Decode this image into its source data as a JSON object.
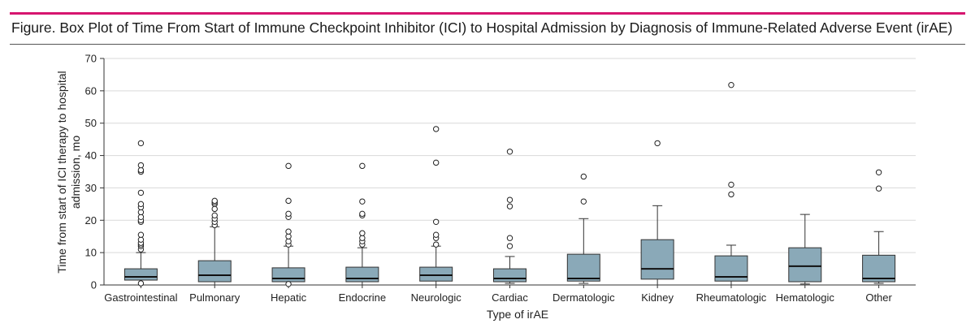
{
  "figure": {
    "title": "Figure. Box Plot of Time From Start of Immune Checkpoint Inhibitor (ICI) to Hospital Admission by Diagnosis of Immune-Related Adverse Event (irAE)"
  },
  "colors": {
    "accent_rule": "#d6156f",
    "box_fill": "#8aa9b8",
    "box_stroke": "#333333",
    "gridline": "#d9d9d9"
  },
  "chart_data": {
    "type": "box",
    "title": "Figure. Box Plot of Time From Start of Immune Checkpoint Inhibitor (ICI) to Hospital Admission by Diagnosis of Immune-Related Adverse Event (irAE)",
    "xlabel": "Type of irAE",
    "ylabel_lines": [
      "Time from start of ICI therapy to hospital",
      "admission, mo"
    ],
    "ylim": [
      0,
      70
    ],
    "yticks": [
      0,
      10,
      20,
      30,
      40,
      50,
      60,
      70
    ],
    "grid": true,
    "categories": [
      "Gastrointestinal",
      "Pulmonary",
      "Hepatic",
      "Endocrine",
      "Neurologic",
      "Cardiac",
      "Dermatologic",
      "Kidney",
      "Rheumatologic",
      "Hematologic",
      "Other"
    ],
    "boxes": [
      {
        "category": "Gastrointestinal",
        "whisker_low": 0,
        "q1": 1.5,
        "median": 2.5,
        "q3": 5,
        "whisker_high": 10,
        "outliers": [
          0.5,
          11,
          12,
          12.5,
          13,
          14,
          15.5,
          19.5,
          20,
          21,
          22.5,
          24,
          25,
          28.5,
          35,
          35.5,
          37,
          43.8
        ]
      },
      {
        "category": "Pulmonary",
        "whisker_low": 0,
        "q1": 1,
        "median": 3,
        "q3": 7.5,
        "whisker_high": 18,
        "outliers": [
          18.5,
          19.5,
          20.5,
          21.5,
          23.5,
          25,
          25.5,
          26
        ]
      },
      {
        "category": "Hepatic",
        "whisker_low": 0,
        "q1": 1,
        "median": 2,
        "q3": 5.3,
        "whisker_high": 12,
        "outliers": [
          0.3,
          12.5,
          13.5,
          15,
          16.5,
          21,
          22,
          26,
          36.8
        ]
      },
      {
        "category": "Endocrine",
        "whisker_low": 0,
        "q1": 1,
        "median": 2,
        "q3": 5.5,
        "whisker_high": 11.5,
        "outliers": [
          12.5,
          13.5,
          14.5,
          16,
          21.5,
          22,
          25.8,
          36.8
        ]
      },
      {
        "category": "Neurologic",
        "whisker_low": 0,
        "q1": 1.2,
        "median": 3,
        "q3": 5.5,
        "whisker_high": 12,
        "outliers": [
          12.5,
          14.5,
          15.5,
          19.5,
          37.8,
          48.2
        ]
      },
      {
        "category": "Cardiac",
        "whisker_low": 0.5,
        "q1": 1,
        "median": 2,
        "q3": 5,
        "whisker_high": 8.8,
        "outliers": [
          12,
          14.5,
          24.3,
          26.3,
          41.2
        ]
      },
      {
        "category": "Dermatologic",
        "whisker_low": 0.5,
        "q1": 1.2,
        "median": 2,
        "q3": 9.5,
        "whisker_high": 20.5,
        "outliers": [
          25.8,
          33.5
        ]
      },
      {
        "category": "Kidney",
        "whisker_low": 0,
        "q1": 1.8,
        "median": 5,
        "q3": 14,
        "whisker_high": 24.5,
        "outliers": [
          43.8
        ]
      },
      {
        "category": "Rheumatologic",
        "whisker_low": 0,
        "q1": 1.2,
        "median": 2.5,
        "q3": 9,
        "whisker_high": 12.3,
        "outliers": [
          28,
          31,
          61.8
        ]
      },
      {
        "category": "Hematologic",
        "whisker_low": 0.3,
        "q1": 1,
        "median": 5.8,
        "q3": 11.5,
        "whisker_high": 21.8,
        "outliers": []
      },
      {
        "category": "Other",
        "whisker_low": 0.5,
        "q1": 1,
        "median": 2,
        "q3": 9.2,
        "whisker_high": 16.5,
        "outliers": [
          29.8,
          34.8
        ]
      }
    ]
  }
}
